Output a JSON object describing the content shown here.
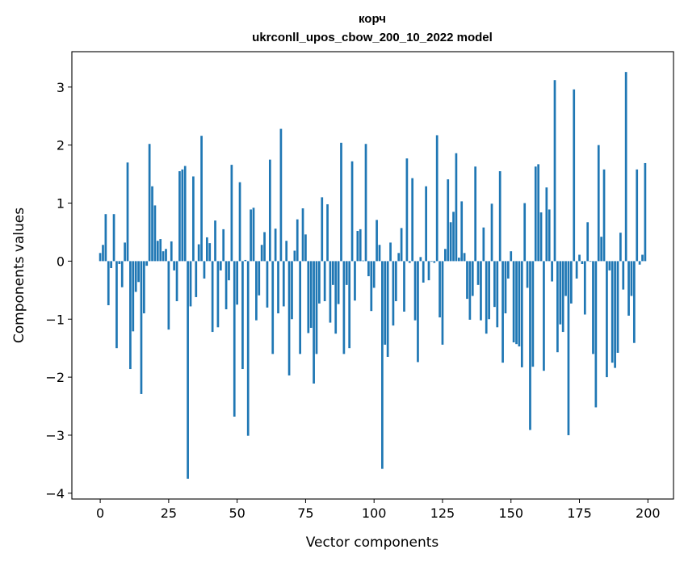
{
  "chart_data": {
    "type": "bar",
    "title_line1": "корч",
    "title_line2": "ukrconll_upos_cbow_200_10_2022 model",
    "xlabel": "Vector components",
    "ylabel": "Components values",
    "xlim": [
      -10.35,
      209.35
    ],
    "ylim": [
      -4.1,
      3.61
    ],
    "grid": false,
    "bar_color": "#1f77b4",
    "bar_width": 0.8,
    "xticks": [
      0,
      25,
      50,
      75,
      100,
      125,
      150,
      175,
      200
    ],
    "xtick_labels": [
      "0",
      "25",
      "50",
      "75",
      "100",
      "125",
      "150",
      "175",
      "200"
    ],
    "yticks": [
      -4,
      -3,
      -2,
      -1,
      0,
      1,
      2,
      3
    ],
    "ytick_labels": [
      "−4",
      "−3",
      "−2",
      "−1",
      "0",
      "1",
      "2",
      "3"
    ],
    "values": [
      0.14,
      0.28,
      0.81,
      -0.76,
      -0.12,
      0.81,
      -1.5,
      -0.05,
      -0.45,
      0.32,
      1.7,
      -1.86,
      -1.21,
      -0.53,
      -0.36,
      -2.29,
      -0.9,
      -0.08,
      2.02,
      1.29,
      0.96,
      0.35,
      0.38,
      0.17,
      0.21,
      -1.18,
      0.34,
      -0.16,
      -0.69,
      1.55,
      1.58,
      1.64,
      -3.75,
      -0.78,
      1.46,
      -0.62,
      0.29,
      2.16,
      -0.3,
      0.41,
      0.31,
      -1.22,
      0.7,
      -1.14,
      -0.16,
      0.55,
      -0.83,
      -0.33,
      1.66,
      -2.68,
      -0.75,
      1.36,
      -1.86,
      0.02,
      -3.01,
      0.89,
      0.92,
      -1.02,
      -0.59,
      0.28,
      0.5,
      -0.8,
      1.75,
      -1.6,
      0.56,
      -0.9,
      2.28,
      -0.78,
      0.35,
      -1.97,
      -1.0,
      0.18,
      0.72,
      -1.6,
      0.91,
      0.46,
      -1.24,
      -1.15,
      -2.11,
      -1.6,
      -0.73,
      1.1,
      -0.69,
      0.98,
      -1.06,
      -0.41,
      -1.25,
      -0.74,
      2.04,
      -1.6,
      -0.41,
      -1.5,
      1.72,
      -0.68,
      0.52,
      0.55,
      0.01,
      2.02,
      -0.26,
      -0.86,
      -0.46,
      0.71,
      0.28,
      -3.58,
      -1.44,
      -1.65,
      0.32,
      -1.11,
      -0.69,
      0.14,
      0.57,
      -0.87,
      1.77,
      -0.03,
      1.43,
      -1.02,
      -1.74,
      0.07,
      -0.37,
      1.29,
      -0.33,
      -0.01,
      -0.03,
      2.17,
      -0.97,
      -1.44,
      0.21,
      1.41,
      0.67,
      0.85,
      1.86,
      0.06,
      1.03,
      0.14,
      -0.65,
      -1.01,
      -0.6,
      1.63,
      -0.41,
      -1.02,
      0.58,
      -1.25,
      -1.0,
      0.99,
      -0.79,
      -1.14,
      1.55,
      -1.75,
      -0.9,
      -0.3,
      0.17,
      -1.4,
      -1.43,
      -1.47,
      -1.83,
      1.0,
      -0.46,
      -2.91,
      -1.82,
      1.63,
      1.67,
      0.84,
      -1.89,
      1.27,
      0.89,
      -0.35,
      3.12,
      -1.57,
      -1.09,
      -1.22,
      -0.6,
      -3.0,
      -0.73,
      2.96,
      -0.3,
      0.11,
      -0.05,
      -0.92,
      0.67,
      -0.01,
      -1.6,
      -2.52,
      2.0,
      0.42,
      1.58,
      -2.0,
      -0.16,
      -1.75,
      -1.84,
      -1.58,
      0.49,
      -0.49,
      3.26,
      -0.94,
      -0.6,
      -1.41,
      1.58,
      -0.06,
      0.11,
      1.69
    ]
  }
}
